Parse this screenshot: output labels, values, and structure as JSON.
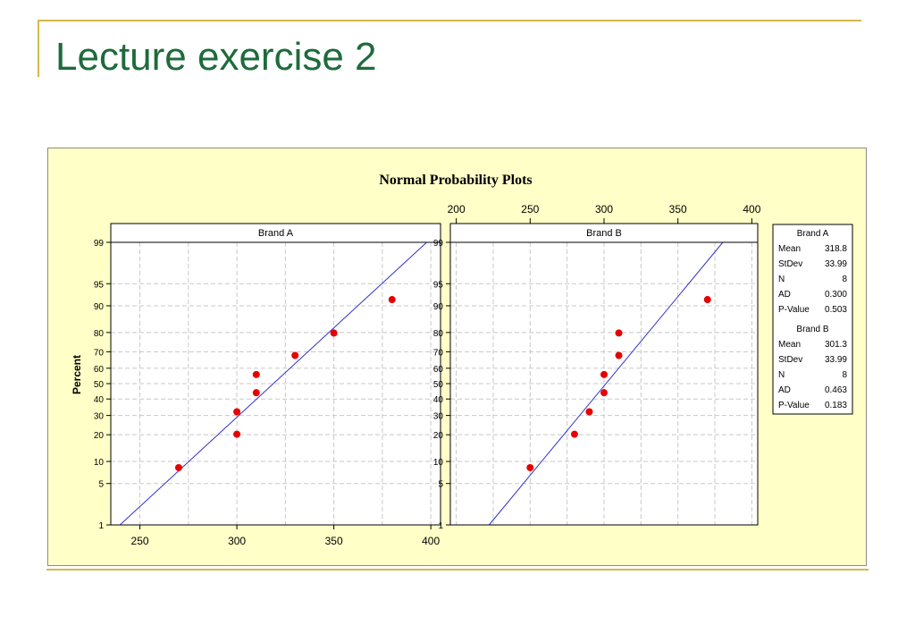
{
  "slide": {
    "title": "Lecture exercise 2"
  },
  "chart_data": {
    "type": "scatter",
    "title": "Normal Probability Plots",
    "ylabel": "Percent",
    "y_scale": "normal-probability",
    "y_ticks": [
      1,
      5,
      10,
      20,
      30,
      40,
      50,
      60,
      70,
      80,
      90,
      95,
      99
    ],
    "x_ticks_bottom": [
      250,
      300,
      350,
      400
    ],
    "x_ticks_top": [
      200,
      250,
      300,
      350,
      400
    ],
    "grid": true,
    "colors": {
      "points": "#e60000",
      "fit_line": "#3333cc",
      "background": "#ffffc7"
    },
    "panels": [
      {
        "name": "Brand A",
        "xlim": [
          235,
          405
        ],
        "points": [
          {
            "x": 270,
            "y": 8.33
          },
          {
            "x": 300,
            "y": 20.24
          },
          {
            "x": 300,
            "y": 32.14
          },
          {
            "x": 310,
            "y": 44.05
          },
          {
            "x": 310,
            "y": 55.95
          },
          {
            "x": 330,
            "y": 67.86
          },
          {
            "x": 350,
            "y": 79.76
          },
          {
            "x": 380,
            "y": 91.67
          }
        ],
        "fit": {
          "mean": 318.8,
          "stdev": 33.99
        }
      },
      {
        "name": "Brand B",
        "xlim": [
          196,
          404
        ],
        "points": [
          {
            "x": 250,
            "y": 8.33
          },
          {
            "x": 280,
            "y": 20.24
          },
          {
            "x": 290,
            "y": 32.14
          },
          {
            "x": 300,
            "y": 44.05
          },
          {
            "x": 300,
            "y": 55.95
          },
          {
            "x": 310,
            "y": 67.86
          },
          {
            "x": 310,
            "y": 79.76
          },
          {
            "x": 370,
            "y": 91.67
          }
        ],
        "fit": {
          "mean": 301.3,
          "stdev": 33.99
        }
      }
    ],
    "legend": {
      "placement": "right",
      "groups": [
        {
          "title": "Brand A",
          "rows": [
            {
              "label": "Mean",
              "value": "318.8"
            },
            {
              "label": "StDev",
              "value": "33.99"
            },
            {
              "label": "N",
              "value": "8"
            },
            {
              "label": "AD",
              "value": "0.300"
            },
            {
              "label": "P-Value",
              "value": "0.503"
            }
          ]
        },
        {
          "title": "Brand B",
          "rows": [
            {
              "label": "Mean",
              "value": "301.3"
            },
            {
              "label": "StDev",
              "value": "33.99"
            },
            {
              "label": "N",
              "value": "8"
            },
            {
              "label": "AD",
              "value": "0.463"
            },
            {
              "label": "P-Value",
              "value": "0.183"
            }
          ]
        }
      ]
    }
  }
}
